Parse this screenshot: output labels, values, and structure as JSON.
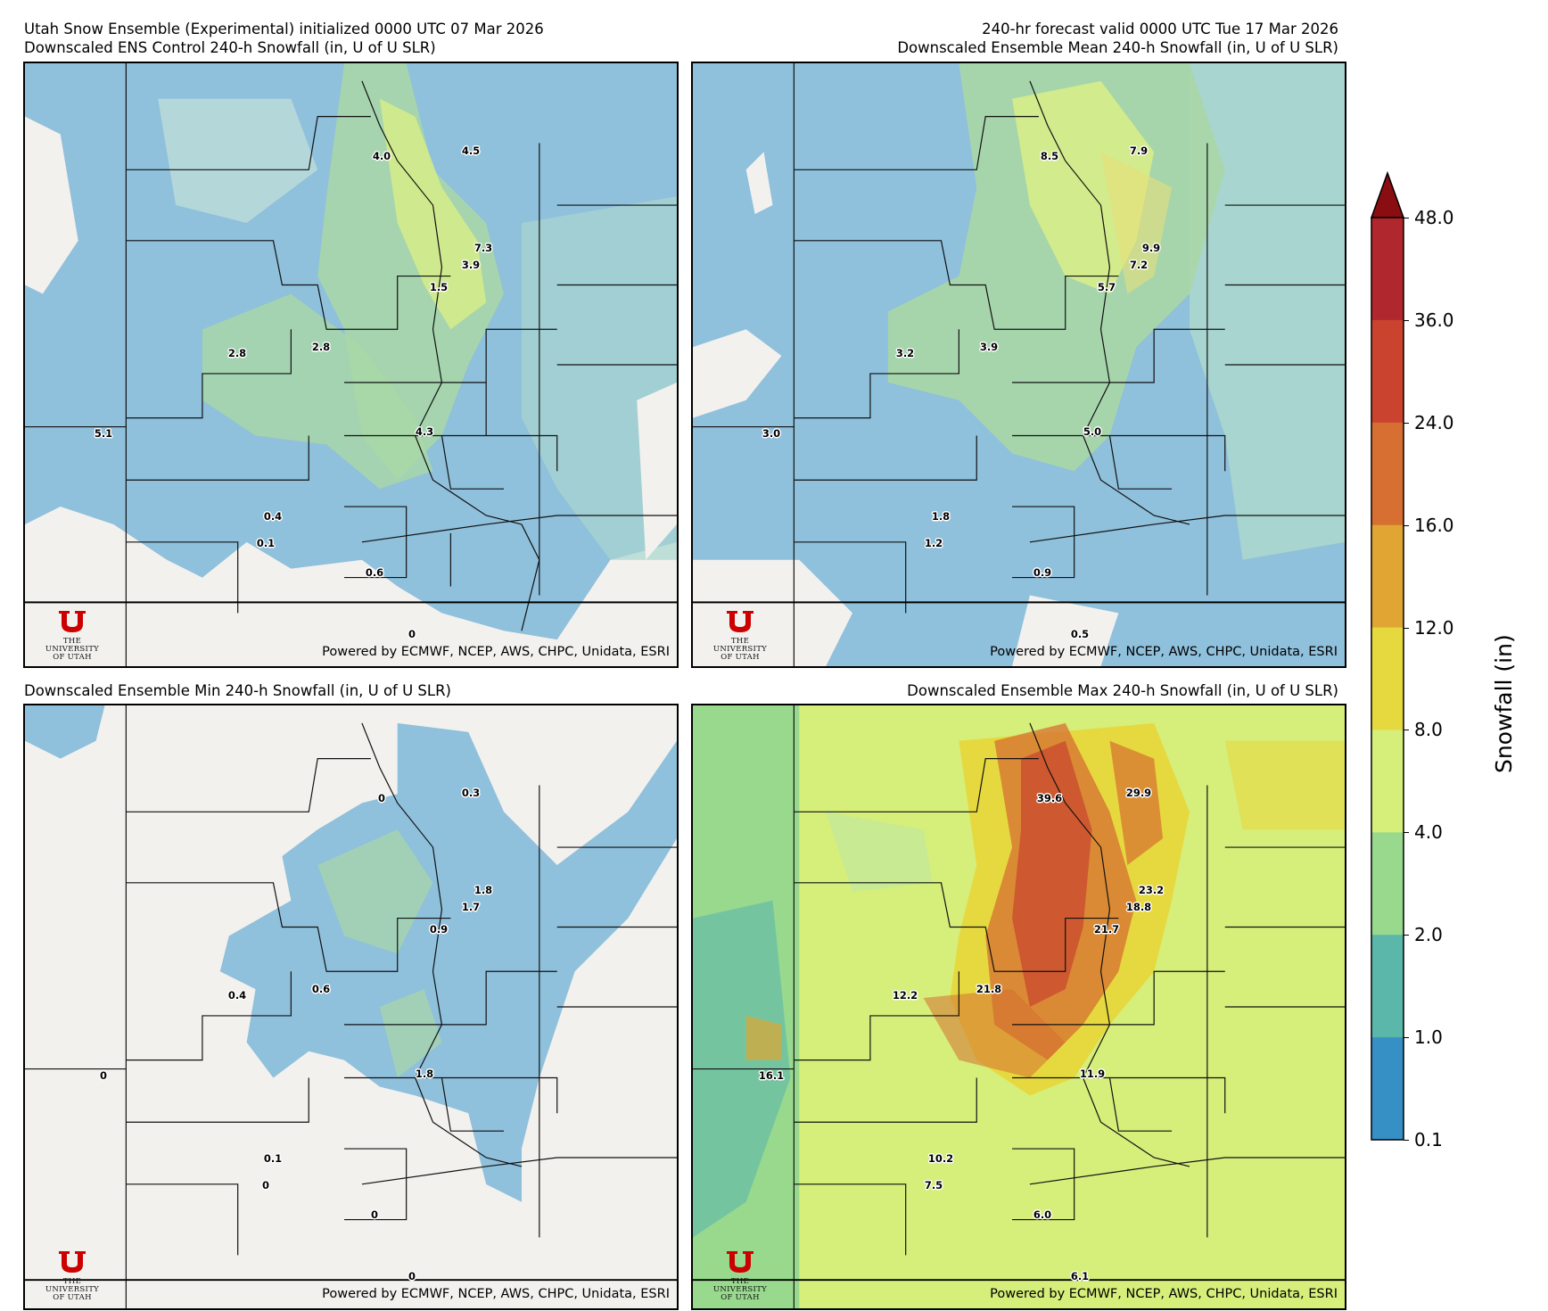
{
  "header": {
    "top_left_line1": "Utah Snow Ensemble (Experimental) initialized 0000 UTC 07 Mar 2026",
    "top_left_line2": "Downscaled ENS Control 240-h Snowfall (in, U of U SLR)",
    "top_right_line1": "240-hr forecast valid 0000 UTC Tue 17 Mar 2026",
    "top_right_line2": "Downscaled Ensemble Mean 240-h Snowfall (in, U of U SLR)",
    "bottom_left_title": "Downscaled Ensemble Min 240-h Snowfall (in, U of U SLR)",
    "bottom_right_title": "Downscaled Ensemble Max 240-h Snowfall (in, U of U SLR)"
  },
  "credit": "Powered by ECMWF, NCEP, AWS, CHPC, Unidata, ESRI",
  "logo": {
    "letter": "U",
    "the": "THE",
    "university": "UNIVERSITY",
    "of_utah": "OF UTAH"
  },
  "colorbar": {
    "label": "Snowfall (in)",
    "ticks": [
      "48.0",
      "36.0",
      "24.0",
      "16.0",
      "12.0",
      "8.0",
      "4.0",
      "2.0",
      "1.0",
      "0.1"
    ],
    "colors": [
      "#b1272e",
      "#c9432f",
      "#d66f31",
      "#e0a533",
      "#e6d93f",
      "#d6ee7a",
      "#98d98e",
      "#5bb7aa",
      "#3690c5"
    ],
    "extend_color": "#8a0d12"
  },
  "panels": {
    "control": {
      "values": [
        "4.0",
        "4.5",
        "7.3",
        "3.9",
        "1.5",
        "2.8",
        "2.8",
        "5.1",
        "4.3",
        "0.4",
        "0.1",
        "0.6",
        "0"
      ]
    },
    "mean": {
      "values": [
        "8.5",
        "7.9",
        "9.9",
        "7.2",
        "5.7",
        "3.2",
        "3.9",
        "3.0",
        "5.0",
        "1.8",
        "1.2",
        "0.9",
        "0.5"
      ]
    },
    "min": {
      "values": [
        "0",
        "0.3",
        "1.8",
        "1.7",
        "0.9",
        "0.4",
        "0.6",
        "0",
        "1.8",
        "0.1",
        "0",
        "0",
        "0"
      ]
    },
    "max": {
      "values": [
        "39.6",
        "29.9",
        "23.2",
        "18.8",
        "21.7",
        "12.2",
        "21.8",
        "16.1",
        "11.9",
        "10.2",
        "7.5",
        "6.0",
        "6.1"
      ]
    }
  }
}
